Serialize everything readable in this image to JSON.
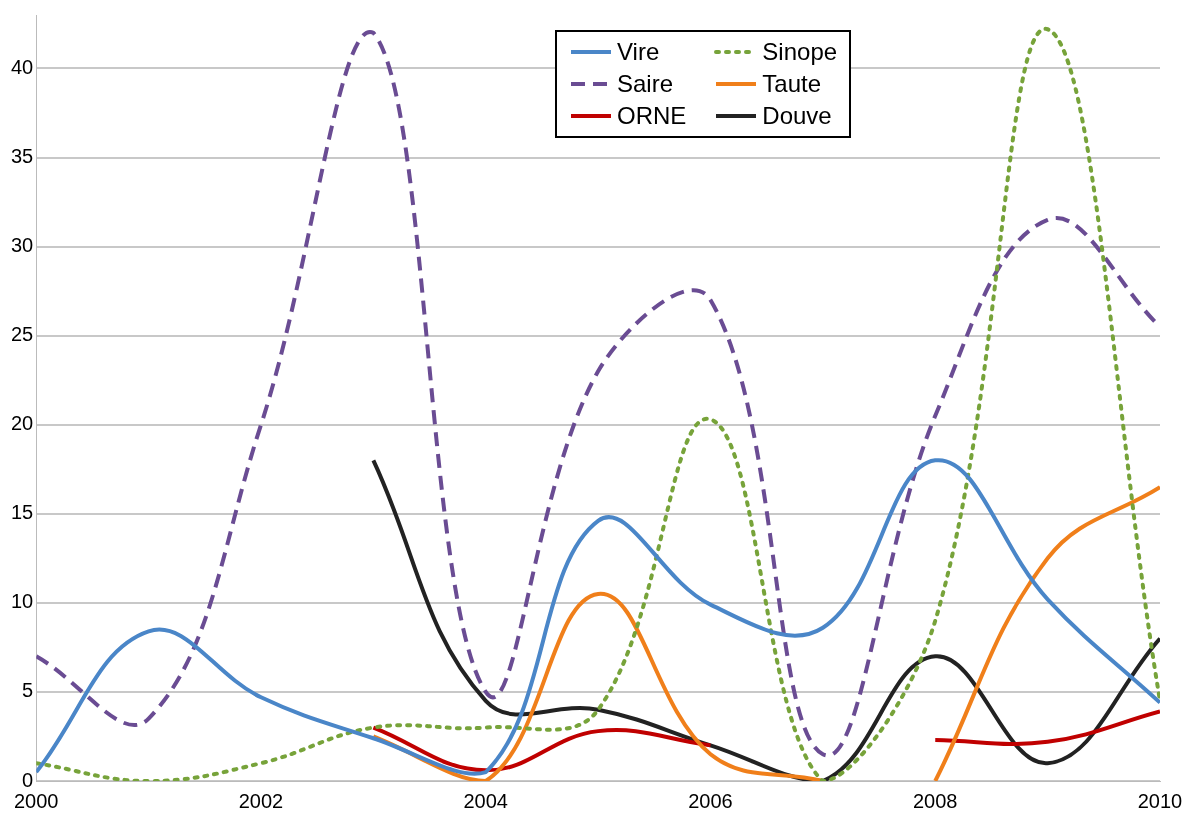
{
  "chart_data": {
    "type": "line",
    "x": [
      2000,
      2001,
      2002,
      2003,
      2004,
      2005,
      2006,
      2007,
      2008,
      2009,
      2010
    ],
    "xlim": [
      2000,
      2010
    ],
    "xticks": [
      2000,
      2002,
      2004,
      2006,
      2008,
      2010
    ],
    "ylim": [
      0,
      43
    ],
    "yticks": [
      0,
      5,
      10,
      15,
      20,
      25,
      30,
      35,
      40
    ],
    "grid": "y",
    "legend": "top",
    "marker": "none",
    "series": [
      {
        "name": "Vire",
        "color": "#4a86c8",
        "line_style": "solid",
        "values": [
          0.5,
          8.4,
          4.7,
          2.4,
          0.5,
          14.6,
          9.9,
          8.6,
          18,
          10.2,
          4.4
        ]
      },
      {
        "name": "Sinope",
        "color": "#77a33a",
        "line_style": "dotted",
        "values": [
          1,
          0,
          1,
          3,
          3,
          4,
          20.3,
          0,
          9,
          42.2,
          4.5
        ]
      },
      {
        "name": "Saire",
        "color": "#6a4c93",
        "line_style": "dashed",
        "values": [
          7,
          3.5,
          20,
          42,
          5,
          23,
          27,
          1.5,
          20.5,
          31.5,
          25.5
        ]
      },
      {
        "name": "Taute",
        "color": "#f07f1a",
        "line_style": "solid",
        "x": [
          2003,
          2004,
          2005,
          2006,
          2007,
          2007.5,
          2008,
          2009,
          2010
        ],
        "values": [
          2.5,
          0,
          10.5,
          1.5,
          0,
          null,
          0,
          12.5,
          16.5
        ]
      },
      {
        "name": "ORNE",
        "color": "#c00000",
        "line_style": "solid",
        "values": [
          null,
          null,
          null,
          3,
          0.6,
          2.8,
          2,
          null,
          2.3,
          2.2,
          3.9
        ]
      },
      {
        "name": "Douve",
        "color": "#222222",
        "line_style": "solid",
        "values": [
          null,
          null,
          null,
          18,
          4.5,
          4,
          2,
          0,
          7,
          1,
          8
        ]
      }
    ]
  }
}
